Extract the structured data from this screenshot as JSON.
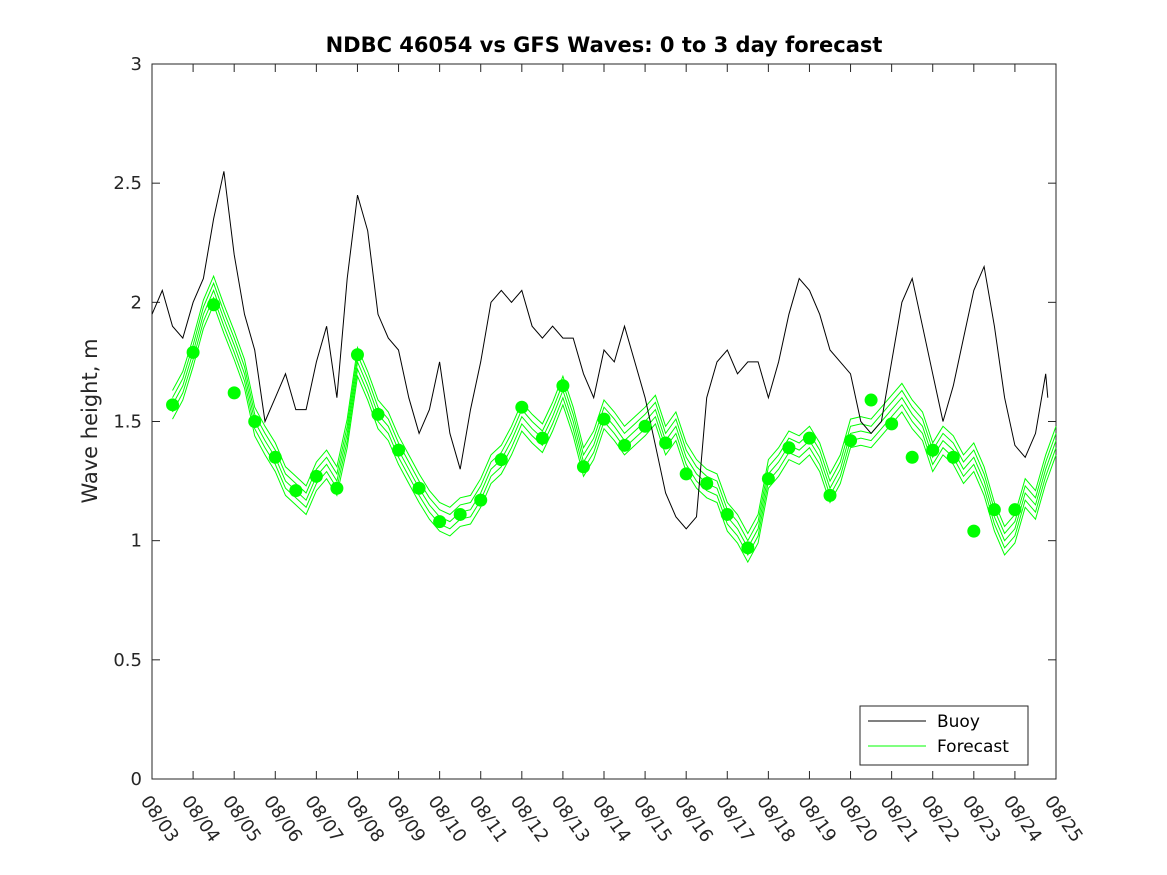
{
  "chart_data": {
    "type": "line",
    "title": "NDBC 46054 vs GFS Waves: 0 to 3 day forecast",
    "xlabel": "",
    "ylabel": "Wave height, m",
    "ylim": [
      0,
      3
    ],
    "xlim": [
      0,
      22
    ],
    "yticks": [
      0,
      0.5,
      1,
      1.5,
      2,
      2.5,
      3
    ],
    "ytick_labels": [
      "0",
      "0.5",
      "1",
      "1.5",
      "2",
      "2.5",
      "3"
    ],
    "xtick_labels": [
      "08/03",
      "08/04",
      "08/05",
      "08/06",
      "08/07",
      "08/08",
      "08/09",
      "08/10",
      "08/11",
      "08/12",
      "08/13",
      "08/14",
      "08/15",
      "08/16",
      "08/17",
      "08/18",
      "08/19",
      "08/20",
      "08/21",
      "08/22",
      "08/23",
      "08/24",
      "08/25"
    ],
    "legend": {
      "position": "bottom-right",
      "entries": [
        "Buoy",
        "Forecast"
      ]
    },
    "colors": {
      "buoy": "#000000",
      "forecast": "#00ff00",
      "axis": "#262626"
    },
    "series": [
      {
        "name": "Buoy",
        "x": [
          0.0,
          0.25,
          0.5,
          0.75,
          1.0,
          1.25,
          1.5,
          1.75,
          2.0,
          2.25,
          2.5,
          2.75,
          3.0,
          3.25,
          3.5,
          3.75,
          4.0,
          4.25,
          4.5,
          4.75,
          5.0,
          5.25,
          5.5,
          5.75,
          6.0,
          6.25,
          6.5,
          6.75,
          7.0,
          7.25,
          7.5,
          7.75,
          8.0,
          8.25,
          8.5,
          8.75,
          9.0,
          9.25,
          9.5,
          9.75,
          10.0,
          10.25,
          10.5,
          10.75,
          11.0,
          11.25,
          11.5,
          11.75,
          12.0,
          12.25,
          12.5,
          12.75,
          13.0,
          13.25,
          13.5,
          13.75,
          14.0,
          14.25,
          14.5,
          14.75,
          15.0,
          15.25,
          15.5,
          15.75,
          16.0,
          16.25,
          16.5,
          16.75,
          17.0,
          17.25,
          17.5,
          17.75,
          18.0,
          18.25,
          18.5,
          18.75,
          19.0,
          19.25,
          19.5,
          19.75,
          20.0,
          20.25,
          20.5,
          20.75,
          21.0,
          21.25,
          21.5,
          21.75,
          21.8
        ],
        "values": [
          1.95,
          2.05,
          1.9,
          1.85,
          2.0,
          2.1,
          2.35,
          2.55,
          2.2,
          1.95,
          1.8,
          1.5,
          1.6,
          1.7,
          1.55,
          1.55,
          1.75,
          1.9,
          1.6,
          2.1,
          2.45,
          2.3,
          1.95,
          1.85,
          1.8,
          1.6,
          1.45,
          1.55,
          1.75,
          1.45,
          1.3,
          1.55,
          1.75,
          2.0,
          2.05,
          2.0,
          2.05,
          1.9,
          1.85,
          1.9,
          1.85,
          1.85,
          1.7,
          1.6,
          1.8,
          1.75,
          1.9,
          1.75,
          1.6,
          1.4,
          1.2,
          1.1,
          1.05,
          1.1,
          1.6,
          1.75,
          1.8,
          1.7,
          1.75,
          1.75,
          1.6,
          1.75,
          1.95,
          2.1,
          2.05,
          1.95,
          1.8,
          1.75,
          1.7,
          1.5,
          1.45,
          1.5,
          1.75,
          2.0,
          2.1,
          1.9,
          1.7,
          1.5,
          1.65,
          1.85,
          2.05,
          2.15,
          1.9,
          1.6,
          1.4,
          1.35,
          1.45,
          1.7,
          1.6
        ]
      },
      {
        "name": "Forecast",
        "x": [
          0.5,
          0.75,
          1.0,
          1.25,
          1.5,
          1.75,
          2.0,
          2.25,
          2.5,
          2.75,
          3.0,
          3.25,
          3.5,
          3.75,
          4.0,
          4.25,
          4.5,
          4.75,
          5.0,
          5.25,
          5.5,
          5.75,
          6.0,
          6.25,
          6.5,
          6.75,
          7.0,
          7.25,
          7.5,
          7.75,
          8.0,
          8.25,
          8.5,
          8.75,
          9.0,
          9.25,
          9.5,
          9.75,
          10.0,
          10.25,
          10.5,
          10.75,
          11.0,
          11.25,
          11.5,
          11.75,
          12.0,
          12.25,
          12.5,
          12.75,
          13.0,
          13.25,
          13.5,
          13.75,
          14.0,
          14.25,
          14.5,
          14.75,
          15.0,
          15.25,
          15.5,
          15.75,
          16.0,
          16.25,
          16.5,
          16.75,
          17.0,
          17.25,
          17.5,
          17.75,
          18.0,
          18.25,
          18.5,
          18.75,
          19.0,
          19.25,
          19.5,
          19.75,
          20.0,
          20.25,
          20.5,
          20.75,
          21.0,
          21.25,
          21.5,
          21.75,
          22.0
        ],
        "values": [
          1.57,
          1.65,
          1.79,
          1.95,
          2.05,
          1.93,
          1.82,
          1.7,
          1.5,
          1.42,
          1.35,
          1.25,
          1.21,
          1.17,
          1.27,
          1.32,
          1.25,
          1.45,
          1.75,
          1.65,
          1.53,
          1.48,
          1.38,
          1.3,
          1.22,
          1.15,
          1.1,
          1.08,
          1.12,
          1.13,
          1.2,
          1.3,
          1.34,
          1.42,
          1.52,
          1.47,
          1.43,
          1.52,
          1.63,
          1.5,
          1.33,
          1.4,
          1.53,
          1.48,
          1.42,
          1.46,
          1.5,
          1.55,
          1.42,
          1.48,
          1.35,
          1.28,
          1.24,
          1.22,
          1.1,
          1.05,
          0.97,
          1.05,
          1.28,
          1.33,
          1.4,
          1.38,
          1.42,
          1.35,
          1.22,
          1.3,
          1.45,
          1.46,
          1.45,
          1.5,
          1.55,
          1.6,
          1.53,
          1.48,
          1.35,
          1.42,
          1.38,
          1.3,
          1.35,
          1.25,
          1.1,
          1.0,
          1.05,
          1.2,
          1.15,
          1.3,
          1.42
        ]
      }
    ],
    "forecast_markers": {
      "x": [
        0.5,
        1.0,
        1.5,
        2.0,
        2.5,
        3.0,
        3.5,
        4.0,
        4.5,
        5.0,
        5.5,
        6.0,
        6.5,
        7.0,
        7.5,
        8.0,
        8.5,
        9.0,
        9.5,
        10.0,
        10.5,
        11.0,
        11.5,
        12.0,
        12.5,
        13.0,
        13.5,
        14.0,
        14.5,
        15.0,
        15.5,
        16.0,
        16.5,
        17.0,
        17.5,
        18.0,
        18.5,
        19.0,
        19.5,
        20.0,
        20.5,
        21.0
      ],
      "values": [
        1.57,
        1.79,
        1.99,
        1.62,
        1.5,
        1.35,
        1.21,
        1.27,
        1.22,
        1.78,
        1.53,
        1.38,
        1.22,
        1.08,
        1.11,
        1.17,
        1.34,
        1.56,
        1.43,
        1.65,
        1.31,
        1.51,
        1.4,
        1.48,
        1.41,
        1.28,
        1.24,
        1.11,
        0.97,
        1.26,
        1.39,
        1.43,
        1.19,
        1.42,
        1.59,
        1.49,
        1.35,
        1.38,
        1.35,
        1.04,
        1.13,
        1.13
      ]
    }
  }
}
